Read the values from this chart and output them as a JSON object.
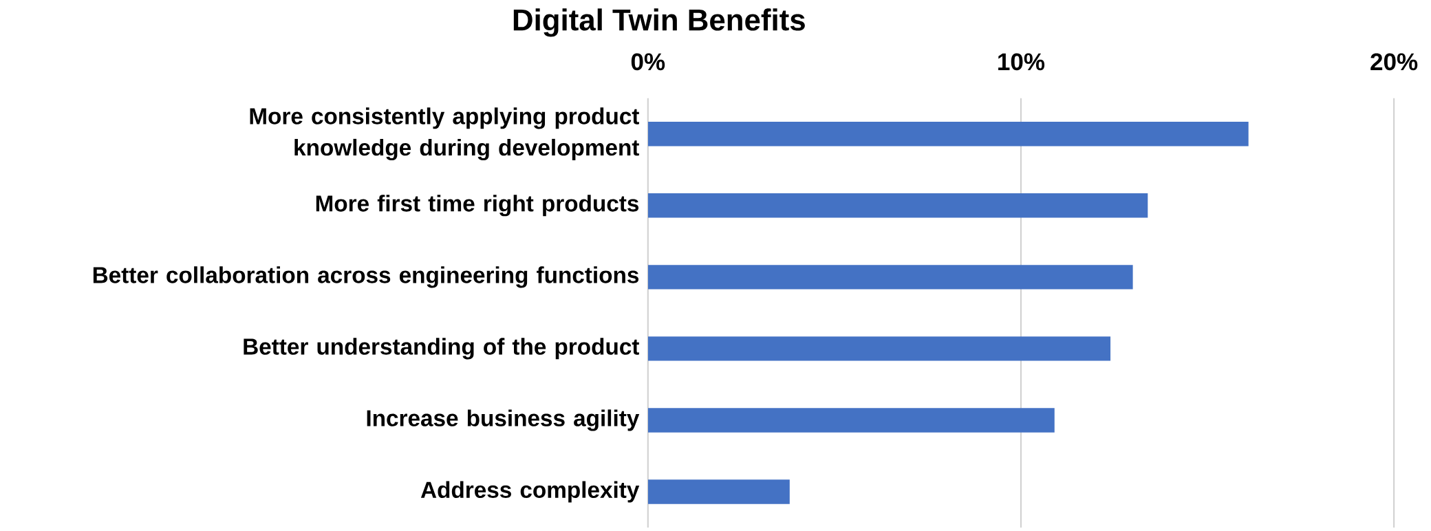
{
  "chart_data": {
    "type": "bar",
    "orientation": "horizontal",
    "title": "Digital Twin Benefits",
    "categories": [
      "More consistently applying product knowledge during development",
      "More first time right products",
      "Better collaboration across engineering functions",
      "Better understanding of the product",
      "Increase business agility",
      "Address complexity"
    ],
    "values": [
      16.1,
      13.4,
      13.0,
      12.4,
      10.9,
      3.8
    ],
    "color": "#4472c4",
    "xlim": [
      0,
      20
    ],
    "xticks": [
      {
        "value": 0,
        "label": "0%"
      },
      {
        "value": 10,
        "label": "10%"
      },
      {
        "value": 20,
        "label": "20%"
      }
    ],
    "grid": "x"
  }
}
